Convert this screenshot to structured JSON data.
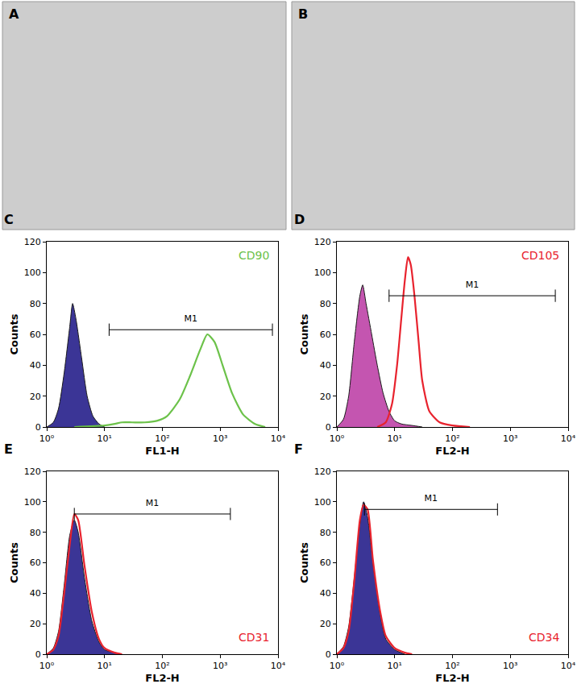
{
  "images": [
    {
      "label": "A"
    },
    {
      "label": "B"
    }
  ],
  "chart_data": [
    {
      "type": "line",
      "title": "C",
      "x_label": "FL1-H",
      "y_label": "Counts",
      "log": "x",
      "grid": false,
      "legend": "top right",
      "xlim": [
        1,
        10000
      ],
      "xticks": [
        {
          "value": 1,
          "label": "10⁰"
        },
        {
          "value": 10,
          "label": "10¹"
        },
        {
          "value": 100,
          "label": "10²"
        },
        {
          "value": 1000,
          "label": "10³"
        },
        {
          "value": 10000,
          "label": "10⁴"
        }
      ],
      "ylim": [
        0,
        120
      ],
      "yticks": [
        0,
        20,
        40,
        60,
        80,
        100,
        120
      ],
      "gate": {
        "label": "M1",
        "x": [
          12,
          8000
        ],
        "y": 63
      },
      "series": [
        {
          "type": "area",
          "color": "#3b3596",
          "x": [
            1,
            1.3,
            1.6,
            2,
            2.5,
            2.8,
            3.2,
            4,
            5,
            6.3,
            8,
            10
          ],
          "values": [
            0,
            3,
            12,
            35,
            65,
            80,
            70,
            45,
            20,
            7,
            2,
            0
          ]
        },
        {
          "name": "CD90",
          "type": "line",
          "color": "#6cc24a",
          "x": [
            3,
            10,
            15,
            20,
            30,
            50,
            80,
            120,
            200,
            300,
            450,
            600,
            800,
            1100,
            1600,
            2500,
            4000,
            6000
          ],
          "values": [
            0,
            1,
            2,
            3,
            3,
            3,
            4,
            7,
            18,
            33,
            50,
            60,
            55,
            40,
            22,
            8,
            2,
            0
          ]
        }
      ]
    },
    {
      "type": "line",
      "title": "D",
      "x_label": "FL2-H",
      "y_label": "Counts",
      "log": "x",
      "grid": false,
      "legend": "top right",
      "xlim": [
        1,
        10000
      ],
      "xticks": [
        {
          "value": 1,
          "label": "10⁰"
        },
        {
          "value": 10,
          "label": "10¹"
        },
        {
          "value": 100,
          "label": "10²"
        },
        {
          "value": 1000,
          "label": "10³"
        },
        {
          "value": 10000,
          "label": "10⁴"
        }
      ],
      "ylim": [
        0,
        120
      ],
      "yticks": [
        0,
        20,
        40,
        60,
        80,
        100,
        120
      ],
      "gate": {
        "label": "M1",
        "x": [
          8,
          6000
        ],
        "y": 85
      },
      "series": [
        {
          "type": "area",
          "color": "#c455b0",
          "x": [
            1,
            1.3,
            1.6,
            2,
            2.5,
            2.8,
            3.2,
            4,
            5,
            6.3,
            8,
            10,
            13,
            20,
            30
          ],
          "values": [
            0,
            5,
            20,
            55,
            85,
            92,
            80,
            60,
            40,
            22,
            10,
            4,
            2,
            1,
            0
          ]
        },
        {
          "name": "CD105",
          "type": "line",
          "color": "#e8232e",
          "x": [
            5,
            7,
            9,
            11,
            13,
            15,
            17,
            19,
            22,
            26,
            30,
            40,
            60,
            100,
            200
          ],
          "values": [
            0,
            3,
            15,
            40,
            70,
            95,
            110,
            105,
            85,
            55,
            30,
            10,
            3,
            1,
            0
          ]
        }
      ]
    },
    {
      "type": "line",
      "title": "E",
      "x_label": "FL2-H",
      "y_label": "Counts",
      "log": "x",
      "grid": false,
      "legend": "bottom right",
      "xlim": [
        1,
        10000
      ],
      "xticks": [
        {
          "value": 1,
          "label": "10⁰"
        },
        {
          "value": 10,
          "label": "10¹"
        },
        {
          "value": 100,
          "label": "10²"
        },
        {
          "value": 1000,
          "label": "10³"
        },
        {
          "value": 10000,
          "label": "10⁴"
        }
      ],
      "ylim": [
        0,
        120
      ],
      "yticks": [
        0,
        20,
        40,
        60,
        80,
        100,
        120
      ],
      "gate": {
        "label": "M1",
        "x": [
          3,
          1500
        ],
        "y": 92
      },
      "series": [
        {
          "type": "area",
          "color": "#3b3596",
          "x": [
            1,
            1.3,
            1.6,
            2,
            2.5,
            3,
            3.5,
            4.5,
            6,
            8,
            10,
            15,
            20
          ],
          "values": [
            0,
            4,
            15,
            45,
            78,
            88,
            80,
            50,
            22,
            8,
            3,
            1,
            0
          ]
        },
        {
          "name": "CD31",
          "type": "line",
          "color": "#e8232e",
          "x": [
            1,
            1.3,
            1.6,
            2,
            2.5,
            3,
            3.5,
            4.5,
            6,
            8,
            10,
            15,
            20
          ],
          "values": [
            0,
            3,
            12,
            40,
            72,
            92,
            88,
            58,
            28,
            10,
            4,
            1,
            0
          ]
        }
      ]
    },
    {
      "type": "line",
      "title": "F",
      "x_label": "FL2-H",
      "y_label": "Counts",
      "log": "x",
      "grid": false,
      "legend": "bottom right",
      "xlim": [
        1,
        10000
      ],
      "xticks": [
        {
          "value": 1,
          "label": "10⁰"
        },
        {
          "value": 10,
          "label": "10¹"
        },
        {
          "value": 100,
          "label": "10²"
        },
        {
          "value": 1000,
          "label": "10³"
        },
        {
          "value": 10000,
          "label": "10⁴"
        }
      ],
      "ylim": [
        0,
        120
      ],
      "yticks": [
        0,
        20,
        40,
        60,
        80,
        100,
        120
      ],
      "gate": {
        "label": "M1",
        "x": [
          3,
          600
        ],
        "y": 95
      },
      "series": [
        {
          "type": "area",
          "color": "#3b3596",
          "x": [
            1,
            1.3,
            1.6,
            2,
            2.5,
            2.9,
            3.4,
            4.2,
            5.5,
            7,
            10,
            15
          ],
          "values": [
            0,
            5,
            18,
            50,
            85,
            100,
            90,
            60,
            28,
            10,
            3,
            0
          ]
        },
        {
          "name": "CD34",
          "type": "line",
          "color": "#e8232e",
          "x": [
            1,
            1.3,
            1.6,
            2,
            2.5,
            2.9,
            3.4,
            4.2,
            5.5,
            7,
            10,
            15,
            20
          ],
          "values": [
            0,
            4,
            15,
            48,
            88,
            98,
            95,
            62,
            30,
            12,
            4,
            1,
            0
          ]
        }
      ]
    }
  ]
}
